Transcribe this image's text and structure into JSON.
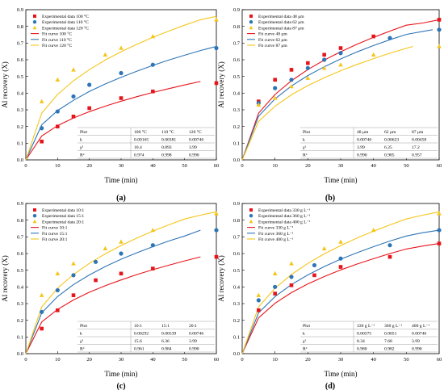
{
  "chart_data": [
    {
      "type": "scatter",
      "panel_label": "(a)",
      "xlabel": "Time (min)",
      "ylabel": "Al recovery (X)",
      "xlim": [
        0,
        60
      ],
      "ylim": [
        0,
        0.9
      ],
      "xticks": [
        0,
        10,
        20,
        30,
        40,
        50,
        60
      ],
      "yticks": [
        0.0,
        0.1,
        0.2,
        0.3,
        0.4,
        0.5,
        0.6,
        0.7,
        0.8,
        0.9
      ],
      "series": [
        {
          "name": "Experimental data 100 °C",
          "kind": "points",
          "marker": "square",
          "color": "#e8141b",
          "x": [
            5,
            10,
            15,
            20,
            30,
            40,
            60
          ],
          "y": [
            0.11,
            0.2,
            0.26,
            0.31,
            0.37,
            0.41,
            0.46
          ]
        },
        {
          "name": "Experimental data 110 °C",
          "kind": "points",
          "marker": "circle",
          "color": "#2e75b6",
          "x": [
            5,
            10,
            15,
            20,
            30,
            40,
            60
          ],
          "y": [
            0.19,
            0.29,
            0.38,
            0.45,
            0.52,
            0.57,
            0.67
          ]
        },
        {
          "name": "Experimental data 120 °C",
          "kind": "points",
          "marker": "triangle",
          "color": "#f5c518",
          "x": [
            5,
            10,
            15,
            25,
            30,
            40,
            60
          ],
          "y": [
            0.35,
            0.48,
            0.54,
            0.63,
            0.67,
            0.74,
            0.84
          ]
        },
        {
          "name": "Fit curve 100 °C",
          "kind": "line",
          "color": "#e8141b",
          "x": [
            0,
            5,
            10,
            15,
            20,
            25,
            30,
            35,
            40,
            45,
            50,
            55
          ],
          "y": [
            0,
            0.143,
            0.205,
            0.251,
            0.289,
            0.322,
            0.352,
            0.379,
            0.404,
            0.427,
            0.449,
            0.47
          ]
        },
        {
          "name": "Fit curve 110 °C",
          "kind": "line",
          "color": "#2e75b6",
          "x": [
            0,
            5,
            10,
            15,
            20,
            25,
            30,
            35,
            40,
            45,
            50,
            55,
            60
          ],
          "y": [
            0,
            0.21,
            0.295,
            0.357,
            0.41,
            0.455,
            0.495,
            0.532,
            0.566,
            0.598,
            0.627,
            0.655,
            0.68
          ]
        },
        {
          "name": "Fit curve 120 °C",
          "kind": "line",
          "color": "#f5c518",
          "x": [
            0,
            5,
            10,
            15,
            20,
            25,
            30,
            35,
            40,
            45,
            50,
            55,
            60
          ],
          "y": [
            0,
            0.28,
            0.392,
            0.474,
            0.541,
            0.598,
            0.648,
            0.693,
            0.734,
            0.772,
            0.807,
            0.84,
            0.86
          ]
        }
      ],
      "table": {
        "columns": [
          "Plot",
          "100 °C",
          "110 °C",
          "120 °C"
        ],
        "rows": [
          [
            "k",
            "0.00165",
            "0.00381",
            "0.00746"
          ],
          [
            "χ²",
            "10.4",
            "0.893",
            "3.99"
          ],
          [
            "R²",
            "0.974",
            "0.998",
            "0.990"
          ]
        ]
      }
    },
    {
      "type": "scatter",
      "panel_label": "(b)",
      "xlabel": "Time (min)",
      "ylabel": "Al recovery (X)",
      "xlim": [
        0,
        60
      ],
      "ylim": [
        0,
        0.9
      ],
      "xticks": [
        0,
        10,
        20,
        30,
        40,
        50,
        60
      ],
      "yticks": [
        0.0,
        0.1,
        0.2,
        0.3,
        0.4,
        0.5,
        0.6,
        0.7,
        0.8,
        0.9
      ],
      "series": [
        {
          "name": "Experimental data 48 μm",
          "kind": "points",
          "marker": "square",
          "color": "#e8141b",
          "x": [
            5,
            10,
            15,
            20,
            25,
            30,
            40,
            60
          ],
          "y": [
            0.35,
            0.48,
            0.54,
            0.58,
            0.63,
            0.67,
            0.74,
            0.84
          ]
        },
        {
          "name": "Experimental data 62 μm",
          "kind": "points",
          "marker": "circle",
          "color": "#2e75b6",
          "x": [
            5,
            10,
            15,
            20,
            25,
            30,
            45,
            60
          ],
          "y": [
            0.34,
            0.43,
            0.48,
            0.55,
            0.6,
            0.64,
            0.73,
            0.78
          ]
        },
        {
          "name": "Experimental data 87 μm",
          "kind": "points",
          "marker": "triangle",
          "color": "#f5c518",
          "x": [
            5,
            10,
            15,
            20,
            25,
            30,
            40,
            60
          ],
          "y": [
            0.33,
            0.37,
            0.44,
            0.49,
            0.55,
            0.57,
            0.63,
            0.68
          ]
        },
        {
          "name": "Fit curve 48 μm",
          "kind": "line",
          "color": "#e8141b",
          "x": [
            0,
            5,
            10,
            15,
            20,
            25,
            30,
            35,
            40,
            45,
            50,
            55,
            60
          ],
          "y": [
            0,
            0.28,
            0.392,
            0.474,
            0.541,
            0.598,
            0.648,
            0.693,
            0.734,
            0.772,
            0.807,
            0.82,
            0.84
          ]
        },
        {
          "name": "Fit curve 62 μm",
          "kind": "line",
          "color": "#2e75b6",
          "x": [
            0,
            5,
            10,
            15,
            20,
            25,
            30,
            35,
            40,
            45,
            50,
            55,
            58
          ],
          "y": [
            0,
            0.262,
            0.366,
            0.443,
            0.505,
            0.558,
            0.605,
            0.647,
            0.685,
            0.72,
            0.752,
            0.77,
            0.78
          ]
        },
        {
          "name": "Fit curve 87 μm",
          "kind": "line",
          "color": "#f5c518",
          "x": [
            0,
            5,
            10,
            15,
            20,
            25,
            30,
            35,
            40,
            45,
            50,
            52
          ],
          "y": [
            0,
            0.23,
            0.322,
            0.39,
            0.445,
            0.492,
            0.534,
            0.572,
            0.607,
            0.639,
            0.668,
            0.68
          ]
        }
      ],
      "table": {
        "columns": [
          "Plot",
          "48 μm",
          "62 μm",
          "87 μm"
        ],
        "rows": [
          [
            "k",
            "0.00746",
            "0.00623",
            "0.00458"
          ],
          [
            "χ²",
            "3.99",
            "6.25",
            "17.2"
          ],
          [
            "R²",
            "0.990",
            "0.985",
            "0.957"
          ]
        ]
      }
    },
    {
      "type": "scatter",
      "panel_label": "(c)",
      "xlabel": "Time (min)",
      "ylabel": "Al recovery (X)",
      "xlim": [
        0,
        60
      ],
      "ylim": [
        0,
        0.9
      ],
      "xticks": [
        0,
        10,
        20,
        30,
        40,
        50,
        60
      ],
      "yticks": [
        0.0,
        0.1,
        0.2,
        0.3,
        0.4,
        0.5,
        0.6,
        0.7,
        0.8,
        0.9
      ],
      "series": [
        {
          "name": "Experimental data 10:1",
          "kind": "points",
          "marker": "square",
          "color": "#e8141b",
          "x": [
            5,
            10,
            15,
            22,
            30,
            40,
            60
          ],
          "y": [
            0.15,
            0.26,
            0.35,
            0.44,
            0.48,
            0.51,
            0.58
          ]
        },
        {
          "name": "Experimental data 15:1",
          "kind": "points",
          "marker": "circle",
          "color": "#2e75b6",
          "x": [
            5,
            10,
            15,
            22,
            30,
            40,
            60
          ],
          "y": [
            0.25,
            0.38,
            0.47,
            0.55,
            0.6,
            0.65,
            0.74
          ]
        },
        {
          "name": "Experimental data 20:1",
          "kind": "points",
          "marker": "triangle",
          "color": "#f5c518",
          "x": [
            5,
            10,
            15,
            25,
            30,
            40,
            60
          ],
          "y": [
            0.35,
            0.48,
            0.54,
            0.63,
            0.67,
            0.74,
            0.84
          ]
        },
        {
          "name": "Fit curve 10:1",
          "kind": "line",
          "color": "#e8141b",
          "x": [
            0,
            5,
            10,
            15,
            20,
            25,
            30,
            35,
            40,
            45,
            50,
            55
          ],
          "y": [
            0,
            0.19,
            0.265,
            0.322,
            0.368,
            0.407,
            0.442,
            0.474,
            0.503,
            0.53,
            0.556,
            0.58
          ]
        },
        {
          "name": "Fit curve 15:1",
          "kind": "line",
          "color": "#2e75b6",
          "x": [
            0,
            5,
            10,
            15,
            20,
            25,
            30,
            35,
            40,
            45,
            50,
            55
          ],
          "y": [
            0,
            0.245,
            0.342,
            0.414,
            0.472,
            0.522,
            0.566,
            0.605,
            0.641,
            0.675,
            0.705,
            0.74
          ]
        },
        {
          "name": "Fit curve 20:1",
          "kind": "line",
          "color": "#f5c518",
          "x": [
            0,
            5,
            10,
            15,
            20,
            25,
            30,
            35,
            40,
            45,
            50,
            55,
            60
          ],
          "y": [
            0,
            0.28,
            0.392,
            0.474,
            0.541,
            0.598,
            0.648,
            0.693,
            0.734,
            0.772,
            0.807,
            0.83,
            0.85
          ]
        }
      ],
      "table": {
        "columns": [
          "Plot",
          "10:1",
          "15:1",
          "20:1"
        ],
        "rows": [
          [
            "k",
            "0.00292",
            "0.00539",
            "0.00746"
          ],
          [
            "χ²",
            "15.6",
            "6.36",
            "3.99"
          ],
          [
            "R²",
            "0.961",
            "0.984",
            "0.990"
          ]
        ]
      }
    },
    {
      "type": "scatter",
      "panel_label": "(d)",
      "xlabel": "Time (min)",
      "ylabel": "Al recovery (X)",
      "xlim": [
        0,
        60
      ],
      "ylim": [
        0,
        0.9
      ],
      "xticks": [
        0,
        10,
        20,
        30,
        40,
        50,
        60
      ],
      "yticks": [
        0.0,
        0.1,
        0.2,
        0.3,
        0.4,
        0.5,
        0.6,
        0.7,
        0.8,
        0.9
      ],
      "series": [
        {
          "name": "Experimental data 330 g L⁻¹",
          "kind": "points",
          "marker": "square",
          "color": "#e8141b",
          "x": [
            5,
            10,
            15,
            22,
            30,
            45,
            60
          ],
          "y": [
            0.26,
            0.36,
            0.41,
            0.47,
            0.52,
            0.58,
            0.66
          ]
        },
        {
          "name": "Experimental data 360 g L⁻¹",
          "kind": "points",
          "marker": "circle",
          "color": "#2e75b6",
          "x": [
            5,
            10,
            15,
            22,
            30,
            45,
            60
          ],
          "y": [
            0.32,
            0.4,
            0.46,
            0.53,
            0.57,
            0.65,
            0.74
          ]
        },
        {
          "name": "Experimental data 400 g L⁻¹",
          "kind": "points",
          "marker": "triangle",
          "color": "#f5c518",
          "x": [
            5,
            10,
            15,
            25,
            30,
            40,
            60
          ],
          "y": [
            0.35,
            0.48,
            0.54,
            0.63,
            0.67,
            0.74,
            0.84
          ]
        },
        {
          "name": "Fit curve 330 g L⁻¹",
          "kind": "line",
          "color": "#e8141b",
          "x": [
            0,
            5,
            10,
            15,
            20,
            25,
            30,
            35,
            40,
            45,
            50,
            55,
            60
          ],
          "y": [
            0,
            0.215,
            0.302,
            0.366,
            0.418,
            0.462,
            0.502,
            0.537,
            0.569,
            0.6,
            0.627,
            0.645,
            0.66
          ]
        },
        {
          "name": "Fit curve 360 g L⁻¹",
          "kind": "line",
          "color": "#2e75b6",
          "x": [
            0,
            5,
            10,
            15,
            20,
            25,
            30,
            35,
            40,
            45,
            50,
            55,
            60
          ],
          "y": [
            0,
            0.245,
            0.342,
            0.414,
            0.472,
            0.522,
            0.566,
            0.605,
            0.641,
            0.675,
            0.705,
            0.725,
            0.74
          ]
        },
        {
          "name": "Fit curve 400 g L⁻¹",
          "kind": "line",
          "color": "#f5c518",
          "x": [
            0,
            5,
            10,
            15,
            20,
            25,
            30,
            35,
            40,
            45,
            50,
            55,
            60
          ],
          "y": [
            0,
            0.28,
            0.392,
            0.474,
            0.541,
            0.598,
            0.648,
            0.693,
            0.734,
            0.772,
            0.807,
            0.83,
            0.85
          ]
        }
      ],
      "table": {
        "columns": [
          "Plot",
          "330 g L⁻¹",
          "360 g L⁻¹",
          "400 g L⁻¹"
        ],
        "rows": [
          [
            "k",
            "0.00375",
            "0.0051",
            "0.00746"
          ],
          [
            "χ²",
            "8.34",
            "7.68",
            "3.99"
          ],
          [
            "R²",
            "0.980",
            "0.982",
            "0.990"
          ]
        ]
      }
    }
  ]
}
